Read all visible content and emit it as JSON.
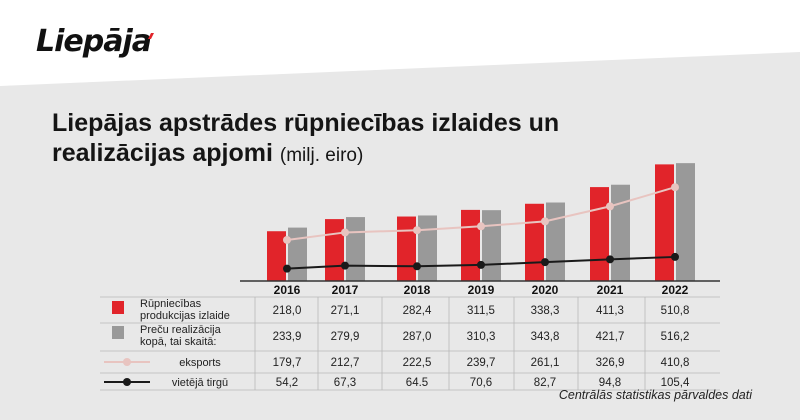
{
  "brand": {
    "logo_text": "Liepāja"
  },
  "title": {
    "main": "Liepājas apstrādes rūpniecības izlaides un realizācijas apjomi",
    "unit": "(milj. eiro)"
  },
  "source": "Centrālās statistikas pārvaldes dati",
  "colors": {
    "red": "#e1242a",
    "gray": "#999999",
    "pink": "#e8c4c0",
    "black": "#1a1a1a",
    "band": "#e8e8e8"
  },
  "chart_data": {
    "type": "bar",
    "categories": [
      "2016",
      "2017",
      "2018",
      "2019",
      "2020",
      "2021",
      "2022"
    ],
    "series": [
      {
        "name": "Rūpniecības produkcijas izlaide",
        "type": "bar",
        "color": "#e1242a",
        "labels": [
          "218,0",
          "271,1",
          "282,4",
          "311,5",
          "338,3",
          "411,3",
          "510,8"
        ],
        "values": [
          218.0,
          271.1,
          282.4,
          311.5,
          338.3,
          411.3,
          510.8
        ]
      },
      {
        "name": "Preču realizācija kopā, tai skaitā:",
        "type": "bar",
        "color": "#999999",
        "labels": [
          "233,9",
          "279,9",
          "287,0",
          "310,3",
          "343,8",
          "421,7",
          "516,2"
        ],
        "values": [
          233.9,
          279.9,
          287.0,
          310.3,
          343.8,
          421.7,
          516.2
        ]
      },
      {
        "name": "eksports",
        "type": "line",
        "color": "#e8c4c0",
        "labels": [
          "179,7",
          "212,7",
          "222,5",
          "239,7",
          "261,1",
          "326,9",
          "410,8"
        ],
        "values": [
          179.7,
          212.7,
          222.5,
          239.7,
          261.1,
          326.9,
          410.8
        ]
      },
      {
        "name": "vietējā tirgū",
        "type": "line",
        "color": "#1a1a1a",
        "labels": [
          "54,2",
          "67,3",
          "64.5",
          "70,6",
          "82,7",
          "94,8",
          "105,4"
        ],
        "values": [
          54.2,
          67.3,
          64.5,
          70.6,
          82.7,
          94.8,
          105.4
        ]
      }
    ],
    "row_labels": [
      [
        "Rūpniecības",
        "produkcijas izlaide"
      ],
      [
        "Preču realizācija",
        "kopā, tai skaitā:"
      ],
      [
        "eksports"
      ],
      [
        "vietējā tirgū"
      ]
    ],
    "ylim": [
      0,
      530
    ],
    "grid": false,
    "legend": "table-left"
  }
}
